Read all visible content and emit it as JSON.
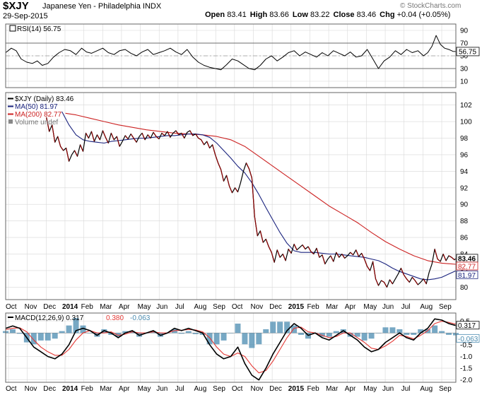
{
  "header": {
    "symbol": "$XJY",
    "name": "Japanese Yen - Philadelphia",
    "exchange": "INDX",
    "date": "29-Sep-2015",
    "watermark": "© StockCharts.com",
    "open_label": "Open",
    "open": "83.41",
    "high_label": "High",
    "high": "83.66",
    "low_label": "Low",
    "low": "83.22",
    "close_label": "Close",
    "close": "83.46",
    "chg_label": "Chg",
    "chg": "+0.04 (+0.05%)"
  },
  "colors": {
    "price": "#000000",
    "price_down": "#8b0000",
    "ma50": "#1a237e",
    "ma200": "#cc2222",
    "rsi": "#000000",
    "rsi_fill": "#b07070",
    "macd": "#000000",
    "signal": "#e53935",
    "histogram": "#4a8bb0",
    "grid": "#d8d8d8"
  },
  "chart_data": [
    {
      "type": "line",
      "panel": "rsi",
      "legend": "RSI(14) 56.75",
      "ylim": [
        0,
        100
      ],
      "yticks": [
        10,
        30,
        50,
        70,
        90
      ],
      "reference_lines": [
        30,
        50,
        70
      ],
      "last_value_label": "56.75",
      "x": [
        0,
        8,
        15,
        22,
        30,
        38,
        45,
        52,
        60,
        68,
        76,
        84,
        92,
        100,
        108,
        115,
        122,
        130,
        138,
        146,
        154,
        162,
        170,
        178,
        186,
        194,
        202,
        210,
        218,
        226,
        234,
        242,
        250,
        258,
        266,
        274,
        282,
        290,
        298,
        306,
        314,
        322,
        330,
        338,
        346,
        354,
        362,
        370,
        378,
        386,
        394,
        402,
        410,
        418,
        426,
        434,
        442,
        450,
        458,
        466,
        474,
        482,
        490,
        498,
        506,
        514,
        522,
        530,
        538,
        546,
        554,
        562,
        570,
        578,
        586,
        594,
        600,
        606,
        612,
        618,
        624,
        630,
        636,
        640
      ],
      "values": [
        55,
        62,
        58,
        45,
        40,
        38,
        42,
        35,
        38,
        48,
        55,
        60,
        58,
        52,
        62,
        56,
        54,
        58,
        62,
        55,
        52,
        58,
        60,
        54,
        50,
        56,
        60,
        52,
        55,
        58,
        62,
        56,
        52,
        60,
        48,
        40,
        35,
        32,
        30,
        28,
        36,
        45,
        42,
        36,
        30,
        28,
        35,
        45,
        50,
        42,
        48,
        55,
        58,
        50,
        56,
        52,
        48,
        55,
        50,
        58,
        54,
        50,
        56,
        48,
        50,
        60,
        45,
        30,
        42,
        48,
        58,
        52,
        60,
        55,
        58,
        50,
        55,
        65,
        82,
        68,
        62,
        60,
        57,
        56.75
      ]
    },
    {
      "type": "line",
      "panel": "price",
      "legend": [
        "$XJY (Daily) 83.46",
        "MA(50) 81.97",
        "MA(200) 82.77",
        "Volume undef"
      ],
      "ylim": [
        78.5,
        103.5
      ],
      "yticks": [
        80,
        82,
        84,
        86,
        88,
        90,
        92,
        94,
        96,
        98,
        100,
        102
      ],
      "last_value_labels": [
        "83.46",
        "82.77",
        "81.97"
      ],
      "series": [
        {
          "name": "$XJY (Daily)",
          "x": [
            58,
            62,
            66,
            70,
            74,
            78,
            82,
            86,
            90,
            94,
            98,
            102,
            106,
            110,
            114,
            118,
            122,
            126,
            130,
            134,
            138,
            142,
            146,
            150,
            154,
            158,
            162,
            166,
            170,
            174,
            178,
            182,
            186,
            190,
            194,
            198,
            202,
            206,
            210,
            214,
            218,
            222,
            226,
            230,
            234,
            238,
            242,
            246,
            250,
            254,
            258,
            262,
            266,
            270,
            274,
            278,
            282,
            286,
            290,
            294,
            298,
            302,
            306,
            310,
            314,
            318,
            322,
            326,
            330,
            334,
            338,
            342,
            346,
            350,
            354,
            358,
            362,
            366,
            370,
            374,
            378,
            382,
            386,
            390,
            394,
            398,
            402,
            406,
            410,
            414,
            418,
            422,
            426,
            430,
            434,
            438,
            442,
            446,
            450,
            454,
            458,
            462,
            466,
            470,
            474,
            478,
            482,
            486,
            490,
            494,
            498,
            502,
            506,
            510,
            514,
            518,
            522,
            526,
            530,
            534,
            538,
            542,
            546,
            550,
            554,
            558,
            562,
            566,
            570,
            574,
            578,
            582,
            586,
            590,
            594,
            598,
            602,
            606,
            610,
            614,
            618,
            622,
            626,
            630,
            634,
            638,
            640
          ],
          "values": [
            100.5,
            98.8,
            99.6,
            97.5,
            98.2,
            97.0,
            96.5,
            96.8,
            95.2,
            96.0,
            96.5,
            95.8,
            97.2,
            96.4,
            98.6,
            98.0,
            98.8,
            97.6,
            98.4,
            97.8,
            98.9,
            98.1,
            97.4,
            98.6,
            97.8,
            98.2,
            97.0,
            97.6,
            98.3,
            97.9,
            98.5,
            98.0,
            97.5,
            98.2,
            98.6,
            97.8,
            98.4,
            98.0,
            98.7,
            98.2,
            97.9,
            98.6,
            98.3,
            98.8,
            98.1,
            98.6,
            98.9,
            98.4,
            98.6,
            98.0,
            98.7,
            98.9,
            98.3,
            98.5,
            98.0,
            97.8,
            97.2,
            97.6,
            96.8,
            97.2,
            96.0,
            95.0,
            94.2,
            92.8,
            93.5,
            92.2,
            91.4,
            92.0,
            91.5,
            92.6,
            94.0,
            95.0,
            94.3,
            93.2,
            88.5,
            86.2,
            86.8,
            85.4,
            85.8,
            84.9,
            84.2,
            83.0,
            84.5,
            83.6,
            84.0,
            83.2,
            84.6,
            84.1,
            85.2,
            84.5,
            84.8,
            85.1,
            84.6,
            84.9,
            84.3,
            84.0,
            84.7,
            83.6,
            83.9,
            82.8,
            83.4,
            83.8,
            83.1,
            84.2,
            83.6,
            84.0,
            83.5,
            83.8,
            84.2,
            83.9,
            84.5,
            83.7,
            84.1,
            83.4,
            82.5,
            82.0,
            83.1,
            81.0,
            80.2,
            80.8,
            80.6,
            80.0,
            80.9,
            80.4,
            81.0,
            81.6,
            82.3,
            81.5,
            81.0,
            80.6,
            81.2,
            80.8,
            80.3,
            80.6,
            81.0,
            80.4,
            81.8,
            82.8,
            84.6,
            83.4,
            83.1,
            84.0,
            83.2,
            83.8,
            83.6,
            83.3,
            83.46
          ]
        },
        {
          "name": "MA(50)",
          "x": [
            80,
            90,
            100,
            110,
            120,
            130,
            140,
            150,
            160,
            170,
            180,
            190,
            200,
            210,
            220,
            230,
            240,
            250,
            260,
            270,
            280,
            290,
            300,
            310,
            320,
            330,
            340,
            350,
            360,
            370,
            380,
            390,
            400,
            410,
            420,
            430,
            440,
            450,
            460,
            470,
            480,
            490,
            500,
            510,
            520,
            530,
            540,
            550,
            560,
            570,
            580,
            590,
            600,
            610,
            620,
            630,
            640
          ],
          "values": [
            101.2,
            99.6,
            98.4,
            97.8,
            97.6,
            97.5,
            97.4,
            97.6,
            97.7,
            97.8,
            97.9,
            98.0,
            98.0,
            98.1,
            98.2,
            98.3,
            98.3,
            98.4,
            98.5,
            98.5,
            98.4,
            98.1,
            97.4,
            96.5,
            95.6,
            94.6,
            93.8,
            92.6,
            91.2,
            89.6,
            88.1,
            86.6,
            85.3,
            84.4,
            84.2,
            84.2,
            84.2,
            84.1,
            84.0,
            84.0,
            83.9,
            83.8,
            83.7,
            83.6,
            83.4,
            83.2,
            82.8,
            82.3,
            81.9,
            81.6,
            81.3,
            81.0,
            80.9,
            81.0,
            81.2,
            81.6,
            81.97
          ]
        },
        {
          "name": "MA(200)",
          "x": [
            85,
            100,
            120,
            140,
            160,
            180,
            200,
            220,
            240,
            260,
            280,
            300,
            320,
            340,
            360,
            380,
            400,
            420,
            440,
            460,
            480,
            500,
            520,
            540,
            560,
            580,
            600,
            620,
            640
          ],
          "values": [
            101.0,
            100.8,
            100.4,
            100.0,
            99.6,
            99.3,
            99.0,
            98.8,
            98.6,
            98.5,
            98.4,
            98.2,
            97.8,
            97.0,
            95.8,
            94.6,
            93.4,
            92.2,
            91.0,
            89.8,
            88.8,
            87.8,
            86.6,
            85.5,
            84.6,
            83.8,
            83.2,
            82.9,
            82.77
          ]
        }
      ]
    },
    {
      "type": "line",
      "panel": "macd",
      "legend": [
        "MACD(12,26,9) 0.317",
        "0.380",
        "-0.063"
      ],
      "ylim": [
        -2.1,
        0.85
      ],
      "yticks": [
        -2.0,
        -1.5,
        -1.0,
        -0.5,
        0.5
      ],
      "last_value_labels": [
        "0.317",
        "-0.063"
      ],
      "series": [
        {
          "name": "MACD(12,26,9)",
          "x": [
            0,
            10,
            20,
            30,
            40,
            50,
            60,
            70,
            80,
            90,
            100,
            110,
            120,
            130,
            140,
            150,
            160,
            170,
            180,
            190,
            200,
            210,
            220,
            230,
            240,
            250,
            260,
            270,
            280,
            290,
            300,
            310,
            320,
            330,
            340,
            350,
            360,
            370,
            380,
            390,
            400,
            410,
            420,
            430,
            440,
            450,
            460,
            470,
            480,
            490,
            500,
            510,
            520,
            530,
            540,
            550,
            560,
            570,
            580,
            590,
            600,
            610,
            620,
            630,
            640
          ],
          "values": [
            0.2,
            0.3,
            0.2,
            -0.2,
            -0.6,
            -0.8,
            -1.0,
            -1.1,
            -0.9,
            -0.5,
            0.1,
            0.2,
            0.1,
            -0.1,
            0.1,
            0.0,
            -0.2,
            0.0,
            0.1,
            -0.1,
            0.0,
            0.1,
            -0.1,
            0.0,
            0.2,
            0.1,
            0.2,
            0.1,
            0.0,
            -0.5,
            -0.9,
            -1.1,
            -1.0,
            -0.6,
            -1.3,
            -1.8,
            -2.0,
            -1.5,
            -0.9,
            -0.4,
            0.1,
            0.4,
            0.2,
            -0.1,
            0.0,
            -0.2,
            -0.3,
            -0.1,
            0.1,
            -0.1,
            -0.3,
            -0.6,
            -0.8,
            -0.7,
            -0.4,
            -0.2,
            0.0,
            -0.2,
            -0.3,
            0.0,
            0.2,
            0.6,
            0.55,
            0.4,
            0.317
          ]
        },
        {
          "name": "Signal",
          "x": [
            0,
            10,
            20,
            30,
            40,
            50,
            60,
            70,
            80,
            90,
            100,
            110,
            120,
            130,
            140,
            150,
            160,
            170,
            180,
            190,
            200,
            210,
            220,
            230,
            240,
            250,
            260,
            270,
            280,
            290,
            300,
            310,
            320,
            330,
            340,
            350,
            360,
            370,
            380,
            390,
            400,
            410,
            420,
            430,
            440,
            450,
            460,
            470,
            480,
            490,
            500,
            510,
            520,
            530,
            540,
            550,
            560,
            570,
            580,
            590,
            600,
            610,
            620,
            630,
            640
          ],
          "values": [
            0.15,
            0.2,
            0.22,
            0.05,
            -0.3,
            -0.6,
            -0.8,
            -0.95,
            -0.95,
            -0.7,
            -0.3,
            0.0,
            0.1,
            0.0,
            0.0,
            0.05,
            -0.1,
            -0.05,
            0.05,
            0.0,
            0.0,
            0.05,
            0.0,
            0.0,
            0.1,
            0.12,
            0.15,
            0.13,
            0.05,
            -0.2,
            -0.6,
            -0.9,
            -1.0,
            -0.85,
            -1.0,
            -1.4,
            -1.7,
            -1.6,
            -1.2,
            -0.7,
            -0.2,
            0.2,
            0.25,
            0.05,
            0.0,
            -0.1,
            -0.2,
            -0.15,
            0.0,
            0.0,
            -0.2,
            -0.4,
            -0.65,
            -0.7,
            -0.55,
            -0.35,
            -0.1,
            -0.15,
            -0.25,
            -0.1,
            0.1,
            0.4,
            0.5,
            0.45,
            0.38
          ]
        }
      ]
    }
  ],
  "x_axis": {
    "labels": [
      "Oct",
      "Nov",
      "Dec",
      "2014",
      "Feb",
      "Mar",
      "Apr",
      "May",
      "Jun",
      "Jul",
      "Aug",
      "Sep",
      "Oct",
      "Nov",
      "Dec",
      "2015",
      "Feb",
      "Mar",
      "Apr",
      "May",
      "Jun",
      "Jul",
      "Aug",
      "Sep"
    ],
    "bold": [
      "2014",
      "2015"
    ]
  }
}
